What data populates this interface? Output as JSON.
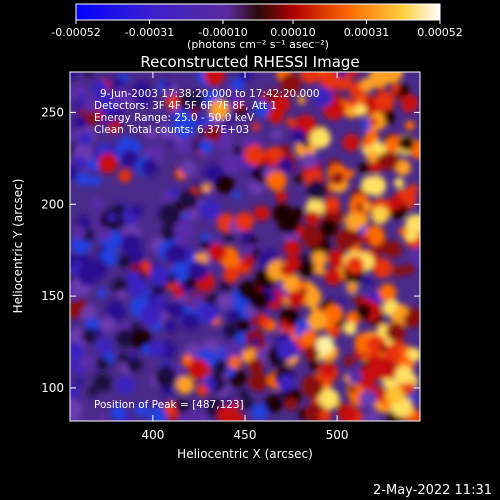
{
  "chart_data": {
    "type": "heatmap",
    "title": "Reconstructed RHESSI Image",
    "xlabel": "Heliocentric X (arcsec)",
    "ylabel": "Heliocentric Y (arcsec)",
    "xlim": [
      355,
      545
    ],
    "ylim": [
      82,
      272
    ],
    "xticks": [
      "400",
      "450",
      "500"
    ],
    "yticks": [
      "100",
      "150",
      "200",
      "250"
    ],
    "colorbar": {
      "min": -0.00052,
      "max": 0.00052,
      "ticks": [
        "-0.00052",
        "-0.00031",
        "-0.00010",
        "0.00010",
        "0.00031",
        "0.00052"
      ],
      "unit_label": "(photons cm⁻² s⁻¹ asec⁻²)",
      "colors": [
        "#0000ff",
        "#3a1fd0",
        "#5a2a9a",
        "#8a1a1a",
        "#d40000",
        "#ff8a00",
        "#ffe060",
        "#ffffff"
      ]
    },
    "annotations": [
      "9-Jun-2003 17:38:20.000 to 17:42:20.000",
      "Detectors: 3F 4F 5F 6F 7F 8F, Att 1",
      "Energy Range: 25.0 - 50.0 keV",
      "Clean      Total counts: 6.37E+03"
    ],
    "peak_label": "Position of Peak = [487,123]"
  },
  "footer": {
    "timestamp": "2-May-2022 11:31"
  }
}
